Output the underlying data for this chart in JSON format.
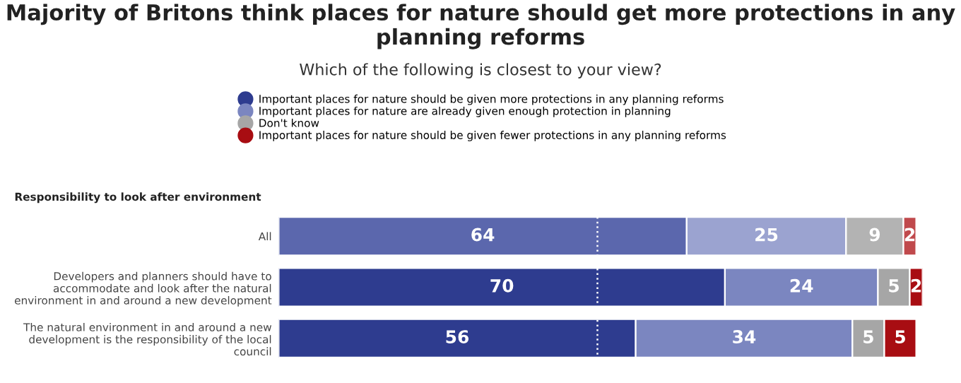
{
  "chart_data": {
    "type": "bar",
    "orientation": "horizontal",
    "stacked": true,
    "title": "Majority of Britons think places for nature should get more protections in any planning reforms",
    "subtitle": "Which of the following is closest to your view?",
    "annotations": [
      "Responsibility to look after environment"
    ],
    "categories": [
      "All",
      "Developers and planners should have to accommodate and look after the natural environment in and around a new development",
      "The natural environment in and around a new development is the responsibility of the local council"
    ],
    "series": [
      {
        "name": "Important places for nature should be given more protections in any planning reforms",
        "color": "#2e3c8f",
        "colors": [
          "#5b67ad",
          "#2e3c8f",
          "#2e3c8f"
        ],
        "values": [
          64,
          70,
          56
        ]
      },
      {
        "name": "Important places for nature are already given enough protection in planning",
        "color": "#7b86c0",
        "colors": [
          "#9ba3d0",
          "#7b86c0",
          "#7b86c0"
        ],
        "values": [
          25,
          24,
          34
        ]
      },
      {
        "name": "Don't know",
        "color": "#a6a6a6",
        "colors": [
          "#b3b3b3",
          "#a6a6a6",
          "#a6a6a6"
        ],
        "values": [
          9,
          5,
          5
        ]
      },
      {
        "name": "Important places for nature should be given fewer protections in any planning reforms",
        "color": "#a80d12",
        "colors": [
          "#c0494c",
          "#a80d12",
          "#a80d12"
        ],
        "values": [
          2,
          2,
          5
        ]
      }
    ],
    "xlim": [
      0,
      101
    ],
    "ref_lines": [
      {
        "axis": "x",
        "value": 50,
        "color": "#ffffff",
        "line_style": "dotted"
      }
    ],
    "data_labels": true,
    "legend": "top",
    "tick_labels": "y",
    "grid": false
  }
}
